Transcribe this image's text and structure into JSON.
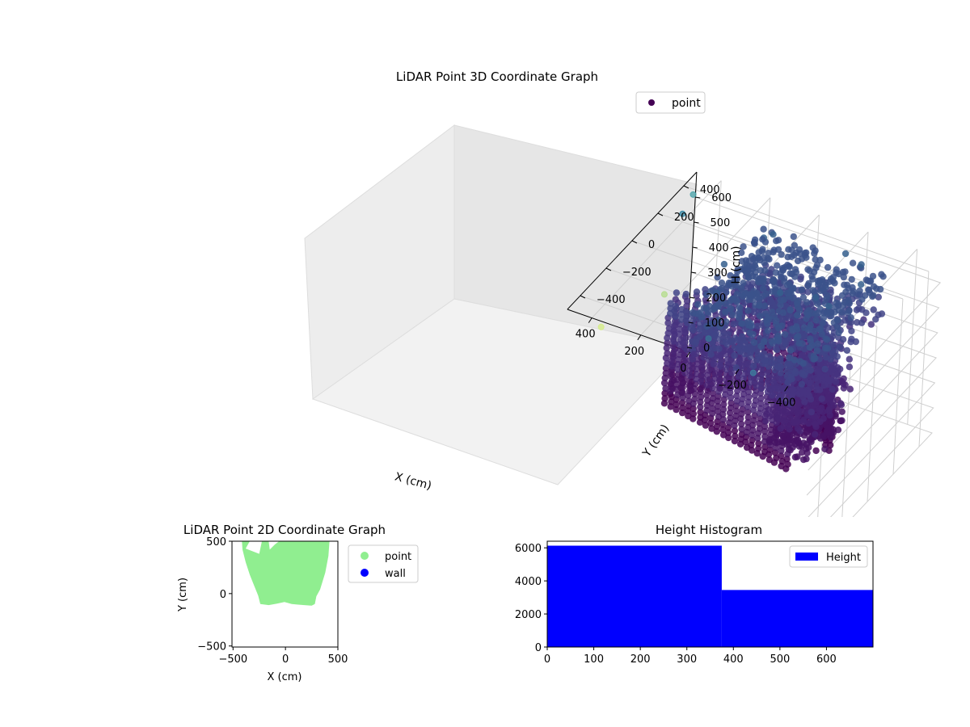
{
  "chart_data": [
    {
      "type": "scatter",
      "title": "LiDAR Point 3D Coordinate Graph",
      "xlabel": "X (cm)",
      "ylabel": "Y (cm)",
      "zlabel": "H (cm)",
      "x_ticks": [
        "−400",
        "−200",
        "0",
        "200",
        "400"
      ],
      "y_ticks": [
        "−400",
        "−200",
        "0",
        "200",
        "400"
      ],
      "z_ticks": [
        "0",
        "100",
        "200",
        "300",
        "400",
        "500",
        "600"
      ],
      "xlim": [
        -500,
        500
      ],
      "ylim": [
        -500,
        500
      ],
      "zlim": [
        0,
        700
      ],
      "z_inverted": true,
      "colormap": "viridis",
      "legend": {
        "labels": [
          "point"
        ],
        "position": "top-right"
      },
      "grid": true,
      "series": [
        {
          "name": "point",
          "x_range": [
            -300,
            450
          ],
          "y_range": [
            -100,
            480
          ],
          "h_range": [
            0,
            620
          ],
          "outlier_points": [
            {
              "x": -200,
              "y": -380,
              "h": 620,
              "color": "#3e7b9c"
            },
            {
              "x": 50,
              "y": -250,
              "h": 600,
              "color": "#3a6e93"
            },
            {
              "x": 300,
              "y": -120,
              "h": 620,
              "color": "#b6dd8f"
            },
            {
              "x": 450,
              "y": 300,
              "h": 660,
              "color": "#3d8ba6"
            },
            {
              "x": 480,
              "y": 440,
              "h": 650,
              "color": "#52a6ad"
            },
            {
              "x": 400,
              "y": -420,
              "h": 620,
              "color": "#d5ec8a"
            }
          ]
        }
      ]
    },
    {
      "type": "scatter",
      "title": "LiDAR Point 2D Coordinate Graph",
      "xlabel": "X (cm)",
      "ylabel": "Y (cm)",
      "x_ticks": [
        "−500",
        "0",
        "500"
      ],
      "y_ticks": [
        "500",
        "0",
        "−500"
      ],
      "xlim": [
        -510,
        500
      ],
      "ylim": [
        -510,
        500
      ],
      "legend": {
        "labels": [
          "point",
          "wall"
        ],
        "position": "outside-right"
      },
      "series": [
        {
          "name": "point",
          "color": "#90ee90",
          "outline": [
            [
              -415,
              500
            ],
            [
              -340,
              500
            ],
            [
              -380,
              430
            ],
            [
              -250,
              380
            ],
            [
              -225,
              500
            ],
            [
              -160,
              500
            ],
            [
              -150,
              420
            ],
            [
              -100,
              470
            ],
            [
              -60,
              500
            ],
            [
              420,
              500
            ],
            [
              410,
              360
            ],
            [
              380,
              200
            ],
            [
              330,
              40
            ],
            [
              295,
              -25
            ],
            [
              280,
              -100
            ],
            [
              250,
              -115
            ],
            [
              180,
              -110
            ],
            [
              120,
              -105
            ],
            [
              60,
              -100
            ],
            [
              -10,
              -80
            ],
            [
              -80,
              -95
            ],
            [
              -160,
              -110
            ],
            [
              -240,
              -100
            ],
            [
              -260,
              -20
            ],
            [
              -300,
              80
            ],
            [
              -340,
              180
            ],
            [
              -380,
              300
            ],
            [
              -410,
              420
            ]
          ]
        },
        {
          "name": "wall",
          "color": "#0000ff",
          "points": []
        }
      ]
    },
    {
      "type": "bar",
      "title": "Height Histogram",
      "xlabel": "",
      "ylabel": "",
      "x_ticks": [
        "0",
        "100",
        "200",
        "300",
        "400",
        "500",
        "600"
      ],
      "y_ticks": [
        "0",
        "2000",
        "4000",
        "6000"
      ],
      "xlim": [
        0,
        700
      ],
      "ylim": [
        0,
        6400
      ],
      "legend": {
        "labels": [
          "Height"
        ],
        "position": "top-right"
      },
      "series": [
        {
          "name": "Height",
          "color": "#0000ff",
          "bins": [
            {
              "x0": 0,
              "x1": 375,
              "count": 6130
            },
            {
              "x0": 375,
              "x1": 700,
              "count": 3450
            }
          ]
        }
      ]
    }
  ]
}
